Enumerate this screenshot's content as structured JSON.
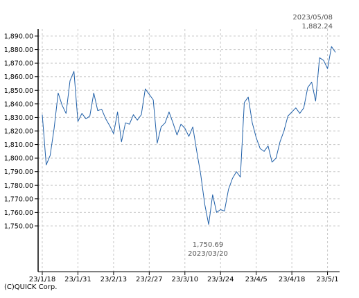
{
  "chart_data": {
    "type": "line",
    "title": "",
    "xlabel": "",
    "ylabel": "",
    "ylim": [
      1730,
      1900
    ],
    "y_tick_values": [
      1750,
      1760,
      1770,
      1780,
      1790,
      1800,
      1810,
      1820,
      1830,
      1840,
      1850,
      1860,
      1870,
      1880,
      1890
    ],
    "y_tick_labels": [
      "1,750.00",
      "1,760.00",
      "1,770.00",
      "1,780.00",
      "1,790.00",
      "1,800.00",
      "1,810.00",
      "1,820.00",
      "1,830.00",
      "1,840.00",
      "1,850.00",
      "1,860.00",
      "1,870.00",
      "1,880.00",
      "1,890.00"
    ],
    "x_tick_labels": [
      "23/1/18",
      "23/1/31",
      "23/2/13",
      "23/2/27",
      "23/3/10",
      "23/3/24",
      "23/4/5",
      "23/4/18",
      "23/5/1"
    ],
    "x_tick_index": [
      0,
      9,
      18,
      27,
      36,
      45,
      54,
      63,
      72
    ],
    "grid": true,
    "line_color": "#1f5fa8",
    "series": [
      {
        "values": [
          1832,
          1795,
          1802,
          1822,
          1848,
          1839,
          1833,
          1857,
          1864,
          1827,
          1833,
          1829,
          1831,
          1848,
          1835,
          1836,
          1829,
          1824,
          1818,
          1834,
          1812,
          1826,
          1825,
          1832,
          1828,
          1832,
          1851,
          1847,
          1843,
          1811,
          1823,
          1826,
          1834,
          1826,
          1817,
          1825,
          1822,
          1816,
          1823,
          1805,
          1788,
          1766,
          1751,
          1773,
          1760,
          1762,
          1761,
          1777,
          1785,
          1790,
          1786,
          1841,
          1845,
          1826,
          1815,
          1807,
          1805,
          1809,
          1797,
          1800,
          1812,
          1820,
          1831,
          1834,
          1837,
          1833,
          1837,
          1852,
          1856,
          1842,
          1874,
          1872,
          1866,
          1882.24,
          1878
        ]
      }
    ],
    "annotations": {
      "high_date": "2023/05/08",
      "high_value": "1,882.24",
      "low_value": "1,750.69",
      "low_date": "2023/03/20"
    }
  },
  "copyright": "(C)QUICK Corp."
}
